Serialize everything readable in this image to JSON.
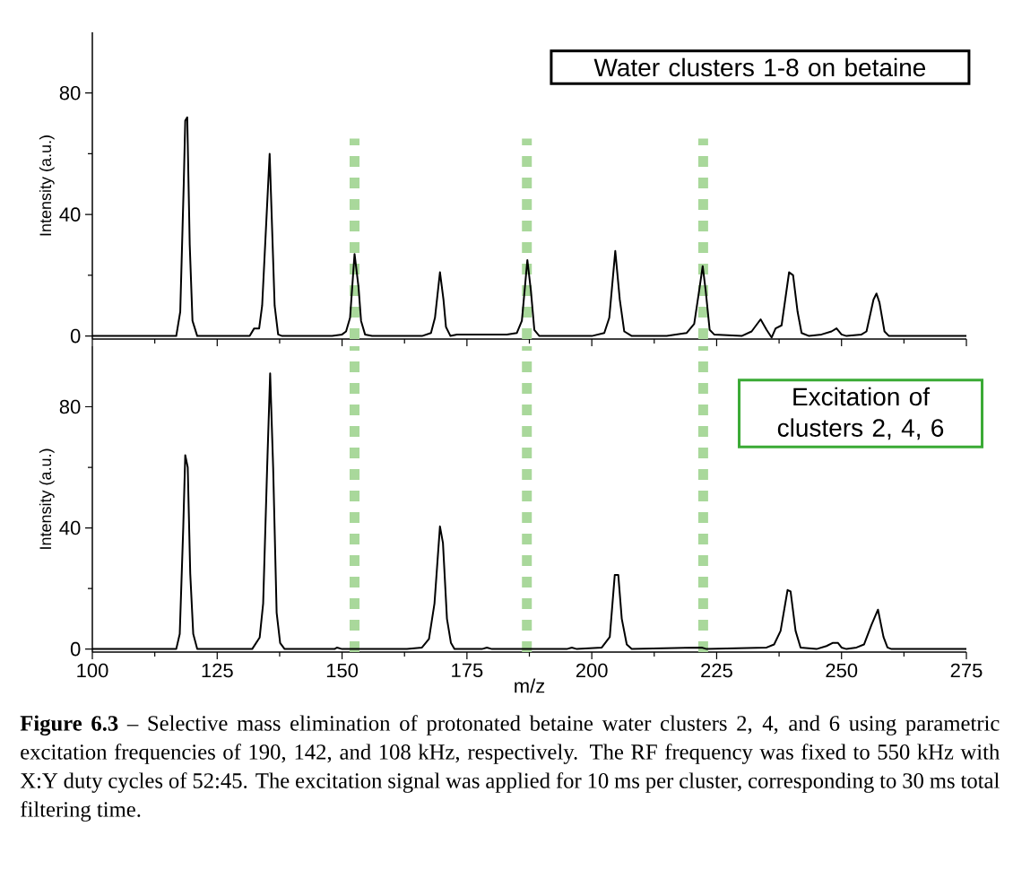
{
  "chart_data": [
    {
      "type": "line",
      "ylabel": "Intensity (a.u.)",
      "xlim": [
        100,
        275
      ],
      "ylim": [
        -1,
        100
      ],
      "xticks": [
        100,
        125,
        150,
        175,
        200,
        225,
        250,
        275
      ],
      "yticks": [
        0,
        40,
        80
      ],
      "tick_labels": "y",
      "annotations": [
        "Water clusters 1-8 on betaine"
      ],
      "ref_lines": [
        {
          "axis": "x",
          "value": 152.5,
          "color": "#a9d89b",
          "line_style": "dotted"
        },
        {
          "axis": "x",
          "value": 187,
          "color": "#a9d89b",
          "line_style": "dotted"
        },
        {
          "axis": "x",
          "value": 222.3,
          "color": "#a9d89b",
          "line_style": "dotted"
        }
      ],
      "series": [
        {
          "color": "#000000",
          "x": [
            100,
            116.8,
            117.6,
            118.3,
            118.6,
            119.0,
            119.5,
            120.05,
            121,
            131.5,
            132.4,
            133.4,
            134,
            135.5,
            136.5,
            137.2,
            138,
            148,
            150,
            150.8,
            151.6,
            152.5,
            153.3,
            153.8,
            154.6,
            156,
            166,
            167.8,
            168.6,
            169.6,
            170.3,
            170.8,
            171.7,
            173,
            180,
            183,
            185,
            186,
            187.1,
            187.8,
            188.5,
            189.5,
            200,
            202.5,
            203.5,
            204.7,
            205.6,
            206.5,
            207.5,
            208,
            215,
            219,
            220.5,
            221.5,
            222.2,
            222.8,
            223.6,
            224.5,
            230,
            232,
            233.8,
            235,
            236,
            236.8,
            238,
            239.5,
            240.3,
            241.2,
            242,
            243.5,
            246,
            247,
            248,
            249,
            250,
            251,
            254,
            255,
            256.4,
            257,
            257.6,
            258.6,
            259.5,
            275
          ],
          "values": [
            0,
            0,
            8,
            50,
            70.9,
            72,
            30,
            5,
            0,
            0,
            2.5,
            2.5,
            10,
            60,
            10,
            0.5,
            0,
            0,
            0.5,
            1.5,
            6,
            27,
            16,
            5,
            0.5,
            0,
            0,
            1,
            6,
            21,
            12,
            3,
            0,
            0.5,
            0.5,
            0.5,
            1,
            5,
            25,
            15,
            2,
            0,
            0,
            1,
            6,
            28,
            12,
            1.5,
            0.5,
            0,
            0,
            1,
            4,
            15,
            23,
            15,
            2,
            0.5,
            0,
            1.5,
            5.5,
            2,
            -0.5,
            2.5,
            3.5,
            21,
            20,
            8,
            1,
            0,
            0.5,
            1,
            1.5,
            2.5,
            0.5,
            0,
            0.5,
            1.5,
            12,
            14,
            11,
            1.5,
            0,
            0
          ]
        }
      ]
    },
    {
      "type": "line",
      "xlabel": "m/z",
      "ylabel": "Intensity (a.u.)",
      "xlim": [
        100,
        275
      ],
      "ylim": [
        -1,
        100
      ],
      "xticks": [
        100,
        125,
        150,
        175,
        200,
        225,
        250,
        275
      ],
      "yticks": [
        0,
        40,
        80
      ],
      "annotations": [
        "Excitation of clusters 2, 4, 6",
        "**Figure 6.3** – Selective mass elimination of protonated betaine water clusters 2, 4, and 6 using parametric excitation frequencies of 190, 142, and 108 kHz, respectively. The RF frequency was fixed to 550 kHz with X:Y duty cycles of 52:45. The excitation signal was applied for 10 ms per cluster, corresponding to 30 ms total filtering time."
      ],
      "ref_lines": [
        {
          "axis": "x",
          "value": 152.5,
          "color": "#a9d89b",
          "line_style": "dotted"
        },
        {
          "axis": "x",
          "value": 187,
          "color": "#a9d89b",
          "line_style": "dotted"
        },
        {
          "axis": "x",
          "value": 222.3,
          "color": "#a9d89b",
          "line_style": "dotted"
        }
      ],
      "series": [
        {
          "color": "#000000",
          "x": [
            100,
            116.8,
            117.5,
            118.2,
            118.6,
            119.1,
            119.6,
            120.2,
            121,
            132,
            133.5,
            134.2,
            135,
            135.6,
            136.2,
            136.9,
            137.6,
            138.5,
            148.5,
            149,
            150,
            163,
            166,
            167.4,
            168.5,
            169.6,
            170.2,
            171,
            171.8,
            172.5,
            178,
            179,
            180,
            195,
            196,
            197,
            202,
            203.6,
            204.6,
            205.3,
            206,
            207,
            208,
            222,
            223,
            235,
            236.5,
            237.8,
            239.2,
            239.8,
            240.8,
            241.8,
            245,
            247,
            248.2,
            249.3,
            250,
            251,
            253,
            254.5,
            256,
            257.3,
            258.4,
            259.2,
            260,
            275
          ],
          "values": [
            0,
            0,
            5,
            40,
            64,
            60,
            25,
            5,
            0,
            0,
            3.8,
            15,
            60,
            91,
            60,
            12,
            2,
            0,
            0,
            0.5,
            0,
            0,
            0.5,
            3.3,
            15,
            40.5,
            35,
            10,
            2,
            0,
            0,
            0.5,
            0,
            0,
            0.5,
            0,
            0.5,
            4,
            24.5,
            24.5,
            10,
            1.5,
            0,
            0.5,
            0,
            0.5,
            1.5,
            6,
            19.5,
            19,
            6,
            0.5,
            0,
            1,
            2,
            2,
            0.5,
            0,
            0.5,
            1.5,
            8,
            13,
            4,
            0.5,
            0,
            0
          ]
        }
      ]
    }
  ]
}
